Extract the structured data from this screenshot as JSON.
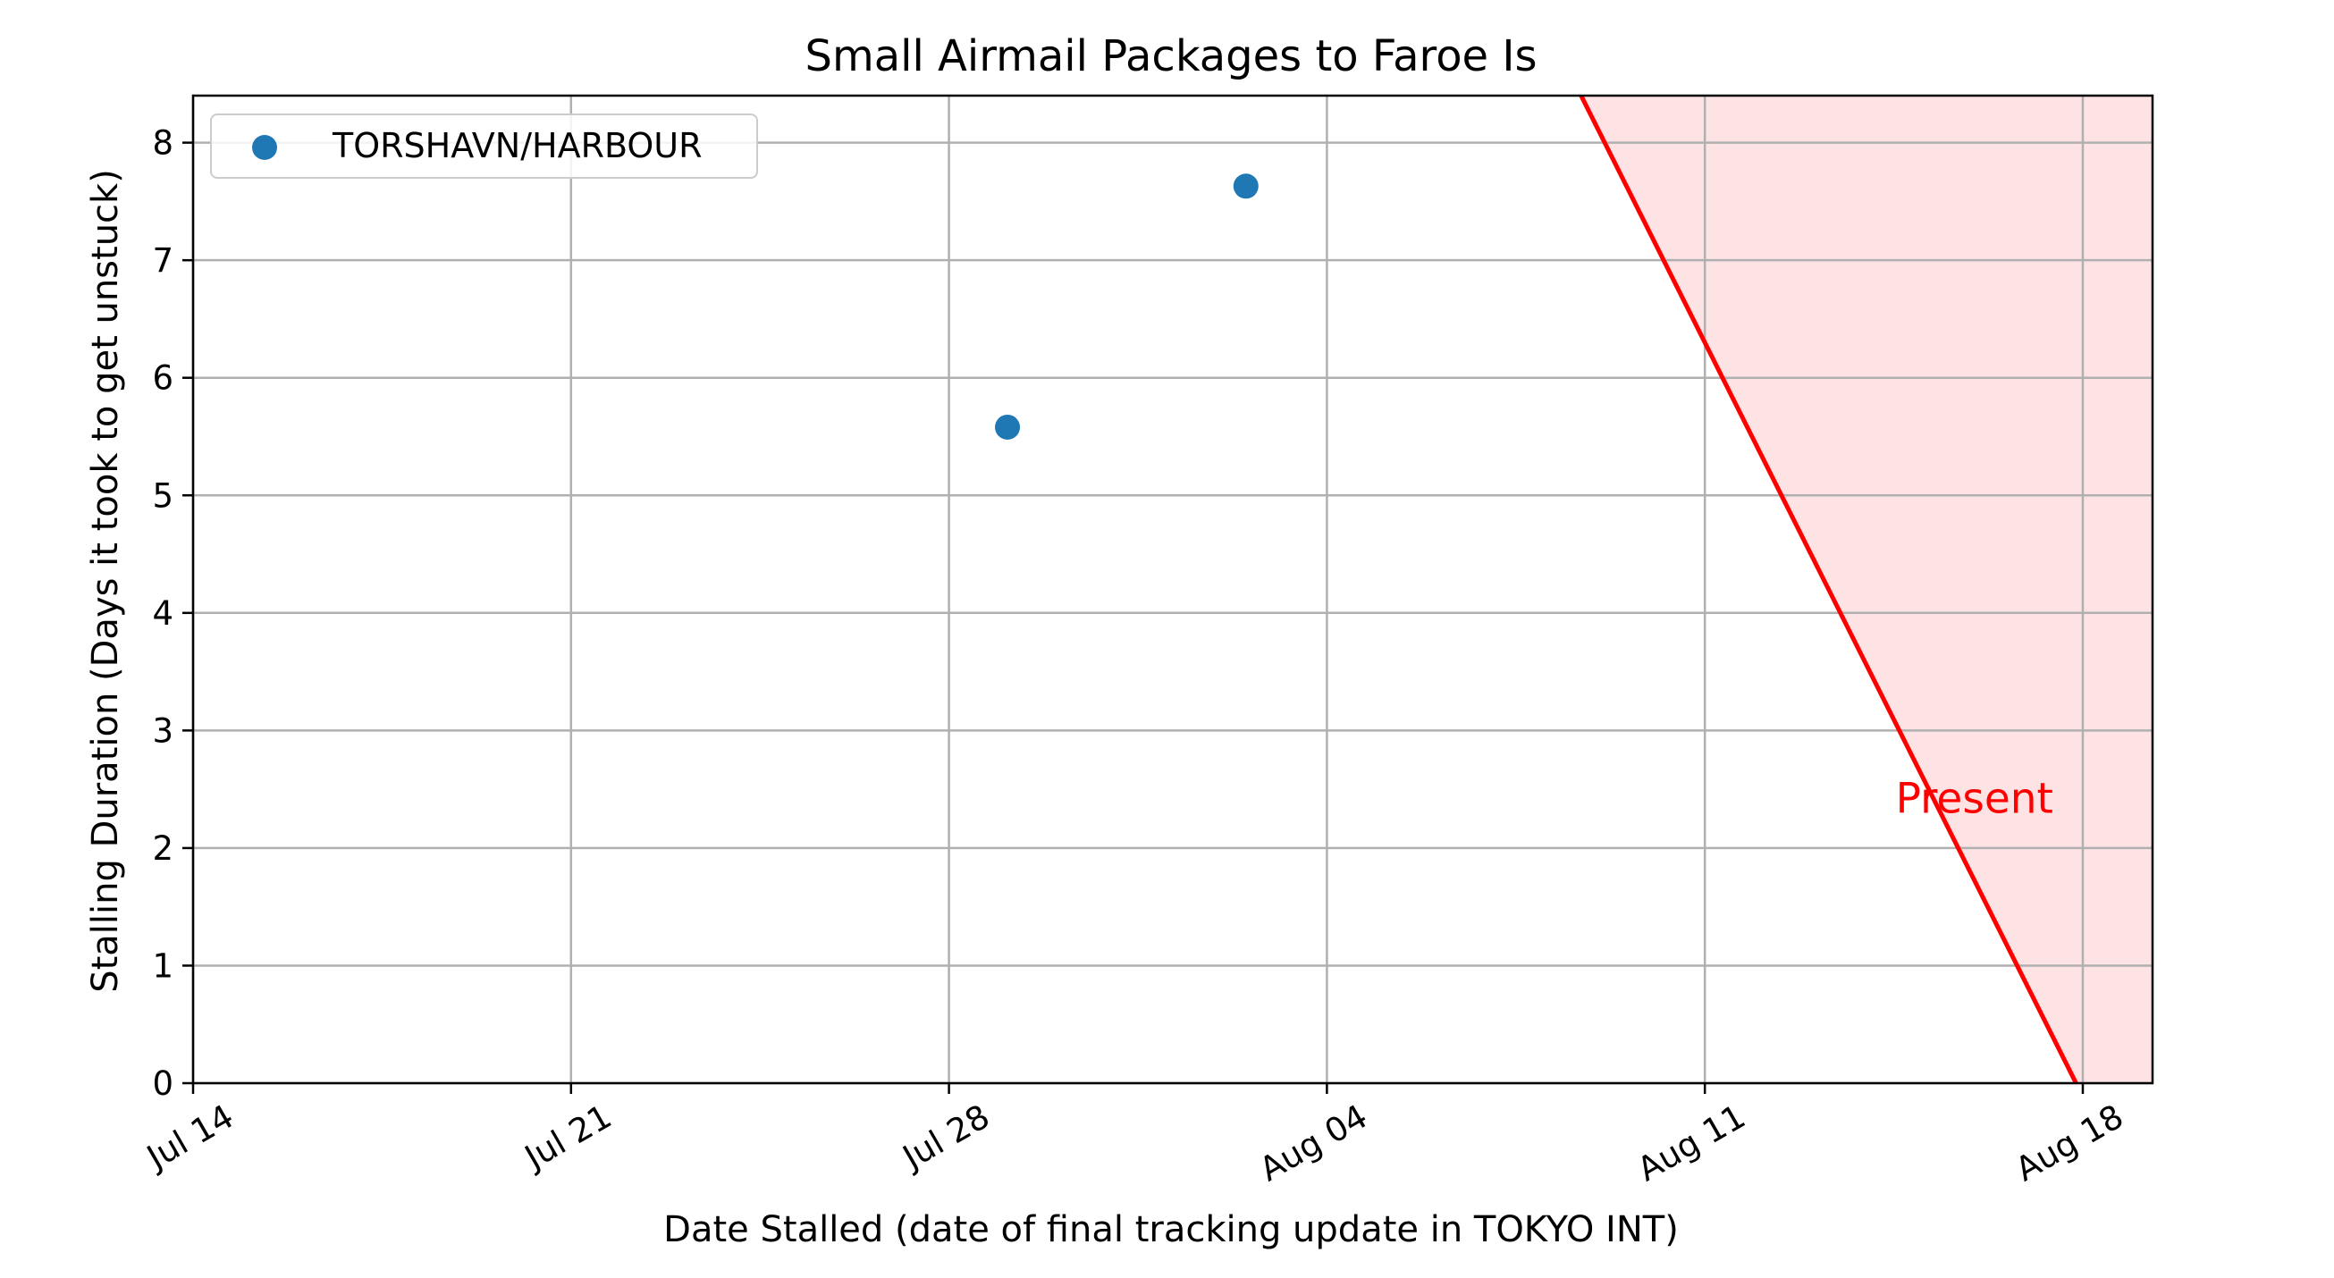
{
  "colors": {
    "series": "#1f77b4",
    "present_line": "#ff0000",
    "present_fill": "#fde3e4",
    "grid": "#b0b0b0",
    "axes": "#000000",
    "background": "#ffffff"
  },
  "chart_data": {
    "type": "scatter",
    "title": "Small Airmail Packages to Faroe Is",
    "xlabel": "Date Stalled (date of final tracking update in TOKYO INT)",
    "ylabel": "Stalling Duration (Days it took to get unstuck)",
    "x_axis_kind": "date",
    "xlim": [
      "2025-07-14",
      "2025-08-19T07:00"
    ],
    "ylim": [
      0,
      8.4
    ],
    "x_ticks": [
      {
        "date": "2025-07-14",
        "label": "Jul 14"
      },
      {
        "date": "2025-07-21",
        "label": "Jul 21"
      },
      {
        "date": "2025-07-28",
        "label": "Jul 28"
      },
      {
        "date": "2025-08-04",
        "label": "Aug 04"
      },
      {
        "date": "2025-08-11",
        "label": "Aug 11"
      },
      {
        "date": "2025-08-18",
        "label": "Aug 18"
      }
    ],
    "x_tick_rotation_deg": 30,
    "y_ticks": [
      0,
      1,
      2,
      3,
      4,
      5,
      6,
      7,
      8
    ],
    "grid": true,
    "legend_position": "top-left",
    "series": [
      {
        "name": "TORSHAVN/HARBOUR",
        "points": [
          {
            "x": "2025-07-29T02:00",
            "y": 5.58
          },
          {
            "x": "2025-08-02T12:00",
            "y": 7.63
          }
        ]
      }
    ],
    "present_boundary": {
      "points": [
        {
          "x": "2025-08-08T17:00",
          "y": 8.4
        },
        {
          "x": "2025-08-17T21:00",
          "y": 0
        }
      ]
    },
    "annotations": [
      {
        "text": "Present",
        "x": "2025-08-15T00:00",
        "y": 2.3
      }
    ]
  }
}
